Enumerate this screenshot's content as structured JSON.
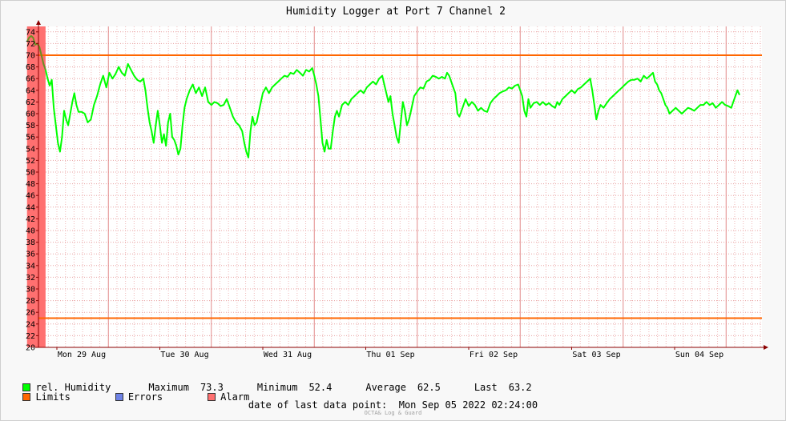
{
  "chart_data": {
    "type": "line",
    "title": "Humidity Logger at Port 7 Channel 2",
    "ylim": [
      20,
      75
    ],
    "y_ticks": [
      20,
      22,
      24,
      26,
      28,
      30,
      32,
      34,
      36,
      38,
      40,
      42,
      44,
      46,
      48,
      50,
      52,
      54,
      56,
      58,
      60,
      62,
      64,
      66,
      68,
      70,
      72,
      74
    ],
    "x_range_days": [
      0,
      7.59
    ],
    "x_tick_labels": [
      {
        "label": "Mon 29 Aug",
        "day": 0
      },
      {
        "label": "Tue 30 Aug",
        "day": 1
      },
      {
        "label": "Wed 31 Aug",
        "day": 2
      },
      {
        "label": "Thu 01 Sep",
        "day": 3
      },
      {
        "label": "Fri 02 Sep",
        "day": 4
      },
      {
        "label": "Sat 03 Sep",
        "day": 5
      },
      {
        "label": "Sun 04 Sep",
        "day": 6
      }
    ],
    "grid": true,
    "limits": [
      70,
      25
    ],
    "alarm_band_days": [
      -0.29,
      -0.11
    ],
    "series": [
      {
        "name": "rel. Humidity",
        "color": "#00FF00",
        "points": [
          [
            -0.29,
            72.3
          ],
          [
            -0.27,
            73.0
          ],
          [
            -0.25,
            73.3
          ],
          [
            -0.23,
            73.0
          ],
          [
            -0.21,
            71.8
          ],
          [
            -0.19,
            72.0
          ],
          [
            -0.17,
            71.4
          ],
          [
            -0.15,
            70.0
          ],
          [
            -0.13,
            68.5
          ],
          [
            -0.11,
            67.5
          ],
          [
            -0.09,
            66.0
          ],
          [
            -0.07,
            64.8
          ],
          [
            -0.05,
            65.8
          ],
          [
            -0.03,
            61.0
          ],
          [
            -0.01,
            58.0
          ],
          [
            0.01,
            55.0
          ],
          [
            0.03,
            53.5
          ],
          [
            0.05,
            56.0
          ],
          [
            0.07,
            60.5
          ],
          [
            0.09,
            59.0
          ],
          [
            0.11,
            58.0
          ],
          [
            0.13,
            60.0
          ],
          [
            0.15,
            62.0
          ],
          [
            0.17,
            63.5
          ],
          [
            0.19,
            61.5
          ],
          [
            0.21,
            60.3
          ],
          [
            0.24,
            60.3
          ],
          [
            0.27,
            60.0
          ],
          [
            0.3,
            58.5
          ],
          [
            0.33,
            59.0
          ],
          [
            0.36,
            61.5
          ],
          [
            0.39,
            63.0
          ],
          [
            0.42,
            65.0
          ],
          [
            0.45,
            66.5
          ],
          [
            0.48,
            64.5
          ],
          [
            0.51,
            67.0
          ],
          [
            0.54,
            66.0
          ],
          [
            0.57,
            66.8
          ],
          [
            0.6,
            68.0
          ],
          [
            0.63,
            67.0
          ],
          [
            0.66,
            66.5
          ],
          [
            0.69,
            68.5
          ],
          [
            0.72,
            67.5
          ],
          [
            0.75,
            66.5
          ],
          [
            0.78,
            65.8
          ],
          [
            0.81,
            65.5
          ],
          [
            0.84,
            66.0
          ],
          [
            0.86,
            64.0
          ],
          [
            0.88,
            61.0
          ],
          [
            0.9,
            58.5
          ],
          [
            0.92,
            57.0
          ],
          [
            0.94,
            55.0
          ],
          [
            0.96,
            58.0
          ],
          [
            0.98,
            60.5
          ],
          [
            1.0,
            58.0
          ],
          [
            1.02,
            55.0
          ],
          [
            1.04,
            56.5
          ],
          [
            1.06,
            54.5
          ],
          [
            1.08,
            58.5
          ],
          [
            1.1,
            60.0
          ],
          [
            1.12,
            56.0
          ],
          [
            1.14,
            55.5
          ],
          [
            1.16,
            54.5
          ],
          [
            1.18,
            53.0
          ],
          [
            1.2,
            54.0
          ],
          [
            1.22,
            58.0
          ],
          [
            1.24,
            61.0
          ],
          [
            1.26,
            62.5
          ],
          [
            1.29,
            64.0
          ],
          [
            1.32,
            65.0
          ],
          [
            1.35,
            63.5
          ],
          [
            1.38,
            64.5
          ],
          [
            1.41,
            63.0
          ],
          [
            1.44,
            64.5
          ],
          [
            1.47,
            62.0
          ],
          [
            1.5,
            61.5
          ],
          [
            1.53,
            62.0
          ],
          [
            1.56,
            61.8
          ],
          [
            1.59,
            61.3
          ],
          [
            1.62,
            61.5
          ],
          [
            1.65,
            62.5
          ],
          [
            1.68,
            61.0
          ],
          [
            1.71,
            59.5
          ],
          [
            1.74,
            58.5
          ],
          [
            1.77,
            58.0
          ],
          [
            1.8,
            57.0
          ],
          [
            1.82,
            55.0
          ],
          [
            1.84,
            53.5
          ],
          [
            1.86,
            52.5
          ],
          [
            1.88,
            57.0
          ],
          [
            1.9,
            59.5
          ],
          [
            1.92,
            58.0
          ],
          [
            1.94,
            58.5
          ],
          [
            1.97,
            61.0
          ],
          [
            2.0,
            63.5
          ],
          [
            2.03,
            64.5
          ],
          [
            2.06,
            63.5
          ],
          [
            2.09,
            64.5
          ],
          [
            2.12,
            65.0
          ],
          [
            2.15,
            65.5
          ],
          [
            2.18,
            66.0
          ],
          [
            2.21,
            66.5
          ],
          [
            2.24,
            66.3
          ],
          [
            2.27,
            67.0
          ],
          [
            2.3,
            66.8
          ],
          [
            2.33,
            67.5
          ],
          [
            2.36,
            67.0
          ],
          [
            2.39,
            66.5
          ],
          [
            2.42,
            67.5
          ],
          [
            2.45,
            67.2
          ],
          [
            2.48,
            67.8
          ],
          [
            2.5,
            66.5
          ],
          [
            2.52,
            65.0
          ],
          [
            2.54,
            63.0
          ],
          [
            2.56,
            59.0
          ],
          [
            2.58,
            55.0
          ],
          [
            2.6,
            53.5
          ],
          [
            2.62,
            55.5
          ],
          [
            2.64,
            54.0
          ],
          [
            2.66,
            54.0
          ],
          [
            2.68,
            57.0
          ],
          [
            2.7,
            59.5
          ],
          [
            2.72,
            60.5
          ],
          [
            2.74,
            59.5
          ],
          [
            2.77,
            61.5
          ],
          [
            2.8,
            62.0
          ],
          [
            2.83,
            61.5
          ],
          [
            2.86,
            62.5
          ],
          [
            2.89,
            63.0
          ],
          [
            2.92,
            63.5
          ],
          [
            2.95,
            64.0
          ],
          [
            2.98,
            63.5
          ],
          [
            3.01,
            64.5
          ],
          [
            3.04,
            65.0
          ],
          [
            3.07,
            65.5
          ],
          [
            3.1,
            65.0
          ],
          [
            3.13,
            66.0
          ],
          [
            3.16,
            66.5
          ],
          [
            3.18,
            65.0
          ],
          [
            3.2,
            63.5
          ],
          [
            3.22,
            62.0
          ],
          [
            3.24,
            63.0
          ],
          [
            3.26,
            60.0
          ],
          [
            3.28,
            58.0
          ],
          [
            3.3,
            56.0
          ],
          [
            3.32,
            55.0
          ],
          [
            3.34,
            58.5
          ],
          [
            3.36,
            62.0
          ],
          [
            3.38,
            60.5
          ],
          [
            3.4,
            58.0
          ],
          [
            3.42,
            59.0
          ],
          [
            3.44,
            60.5
          ],
          [
            3.47,
            63.0
          ],
          [
            3.5,
            63.8
          ],
          [
            3.53,
            64.5
          ],
          [
            3.56,
            64.3
          ],
          [
            3.59,
            65.5
          ],
          [
            3.62,
            65.8
          ],
          [
            3.65,
            66.5
          ],
          [
            3.68,
            66.3
          ],
          [
            3.71,
            66.0
          ],
          [
            3.74,
            66.3
          ],
          [
            3.77,
            66.0
          ],
          [
            3.79,
            67.0
          ],
          [
            3.81,
            66.5
          ],
          [
            3.83,
            65.5
          ],
          [
            3.85,
            64.5
          ],
          [
            3.87,
            63.5
          ],
          [
            3.89,
            60.0
          ],
          [
            3.91,
            59.5
          ],
          [
            3.94,
            61.0
          ],
          [
            3.97,
            62.5
          ],
          [
            4.0,
            61.3
          ],
          [
            4.03,
            62.0
          ],
          [
            4.06,
            61.5
          ],
          [
            4.09,
            60.5
          ],
          [
            4.12,
            61.0
          ],
          [
            4.15,
            60.5
          ],
          [
            4.18,
            60.3
          ],
          [
            4.21,
            61.8
          ],
          [
            4.24,
            62.5
          ],
          [
            4.27,
            63.0
          ],
          [
            4.3,
            63.5
          ],
          [
            4.33,
            63.8
          ],
          [
            4.36,
            64.0
          ],
          [
            4.39,
            64.5
          ],
          [
            4.42,
            64.3
          ],
          [
            4.45,
            64.8
          ],
          [
            4.48,
            65.0
          ],
          [
            4.5,
            64.0
          ],
          [
            4.52,
            63.0
          ],
          [
            4.54,
            60.5
          ],
          [
            4.56,
            59.5
          ],
          [
            4.58,
            62.5
          ],
          [
            4.6,
            61.0
          ],
          [
            4.63,
            61.8
          ],
          [
            4.66,
            62.0
          ],
          [
            4.69,
            61.5
          ],
          [
            4.72,
            62.0
          ],
          [
            4.75,
            61.5
          ],
          [
            4.78,
            61.8
          ],
          [
            4.81,
            61.3
          ],
          [
            4.84,
            61.0
          ],
          [
            4.86,
            62.0
          ],
          [
            4.88,
            61.5
          ],
          [
            4.91,
            62.5
          ],
          [
            4.94,
            63.0
          ],
          [
            4.97,
            63.5
          ],
          [
            5.0,
            64.0
          ],
          [
            5.03,
            63.5
          ],
          [
            5.06,
            64.2
          ],
          [
            5.09,
            64.5
          ],
          [
            5.12,
            65.0
          ],
          [
            5.15,
            65.5
          ],
          [
            5.18,
            66.0
          ],
          [
            5.2,
            64.0
          ],
          [
            5.22,
            61.5
          ],
          [
            5.24,
            59.0
          ],
          [
            5.26,
            60.5
          ],
          [
            5.28,
            61.5
          ],
          [
            5.31,
            61.0
          ],
          [
            5.34,
            61.8
          ],
          [
            5.37,
            62.5
          ],
          [
            5.4,
            63.0
          ],
          [
            5.43,
            63.5
          ],
          [
            5.46,
            64.0
          ],
          [
            5.49,
            64.5
          ],
          [
            5.52,
            65.0
          ],
          [
            5.55,
            65.5
          ],
          [
            5.58,
            65.8
          ],
          [
            5.61,
            65.8
          ],
          [
            5.64,
            66.0
          ],
          [
            5.67,
            65.5
          ],
          [
            5.7,
            66.5
          ],
          [
            5.73,
            66.0
          ],
          [
            5.76,
            66.5
          ],
          [
            5.79,
            67.0
          ],
          [
            5.81,
            65.5
          ],
          [
            5.83,
            65.0
          ],
          [
            5.85,
            64.0
          ],
          [
            5.87,
            63.5
          ],
          [
            5.89,
            62.5
          ],
          [
            5.91,
            61.5
          ],
          [
            5.93,
            61.0
          ],
          [
            5.95,
            60.0
          ],
          [
            5.98,
            60.5
          ],
          [
            6.01,
            61.0
          ],
          [
            6.04,
            60.5
          ],
          [
            6.07,
            60.0
          ],
          [
            6.1,
            60.5
          ],
          [
            6.13,
            61.0
          ],
          [
            6.16,
            60.8
          ],
          [
            6.19,
            60.5
          ],
          [
            6.22,
            61.0
          ],
          [
            6.25,
            61.5
          ],
          [
            6.28,
            61.5
          ],
          [
            6.31,
            62.0
          ],
          [
            6.34,
            61.5
          ],
          [
            6.37,
            61.8
          ],
          [
            6.4,
            61.0
          ],
          [
            6.43,
            61.5
          ],
          [
            6.46,
            62.0
          ],
          [
            6.49,
            61.5
          ],
          [
            6.52,
            61.3
          ],
          [
            6.55,
            61.0
          ],
          [
            6.57,
            62.0
          ],
          [
            6.59,
            63.0
          ],
          [
            6.61,
            64.0
          ],
          [
            6.63,
            63.2
          ]
        ]
      }
    ]
  },
  "legend": {
    "humidity": "rel. Humidity",
    "maximum_label": "Maximum",
    "maximum_value": "73.3",
    "minimum_label": "Minimum",
    "minimum_value": "52.4",
    "average_label": "Average",
    "average_value": "62.5",
    "last_label": "Last",
    "last_value": "63.2",
    "limits": "Limits",
    "errors": "Errors",
    "alarm": "Alarm"
  },
  "colors": {
    "humidity": "#00FF00",
    "humidity_in_alarm": "#6B8E23",
    "limits": "#FF6600",
    "errors": "#6E82E6",
    "alarm": "#FF7070",
    "grid": "#E8A0A0",
    "axis": "#8B0000"
  },
  "footer": {
    "label": "date of last data point:",
    "value": "Mon Sep 05 2022 02:24:00"
  },
  "credit": "OCTA& Log & Guard"
}
